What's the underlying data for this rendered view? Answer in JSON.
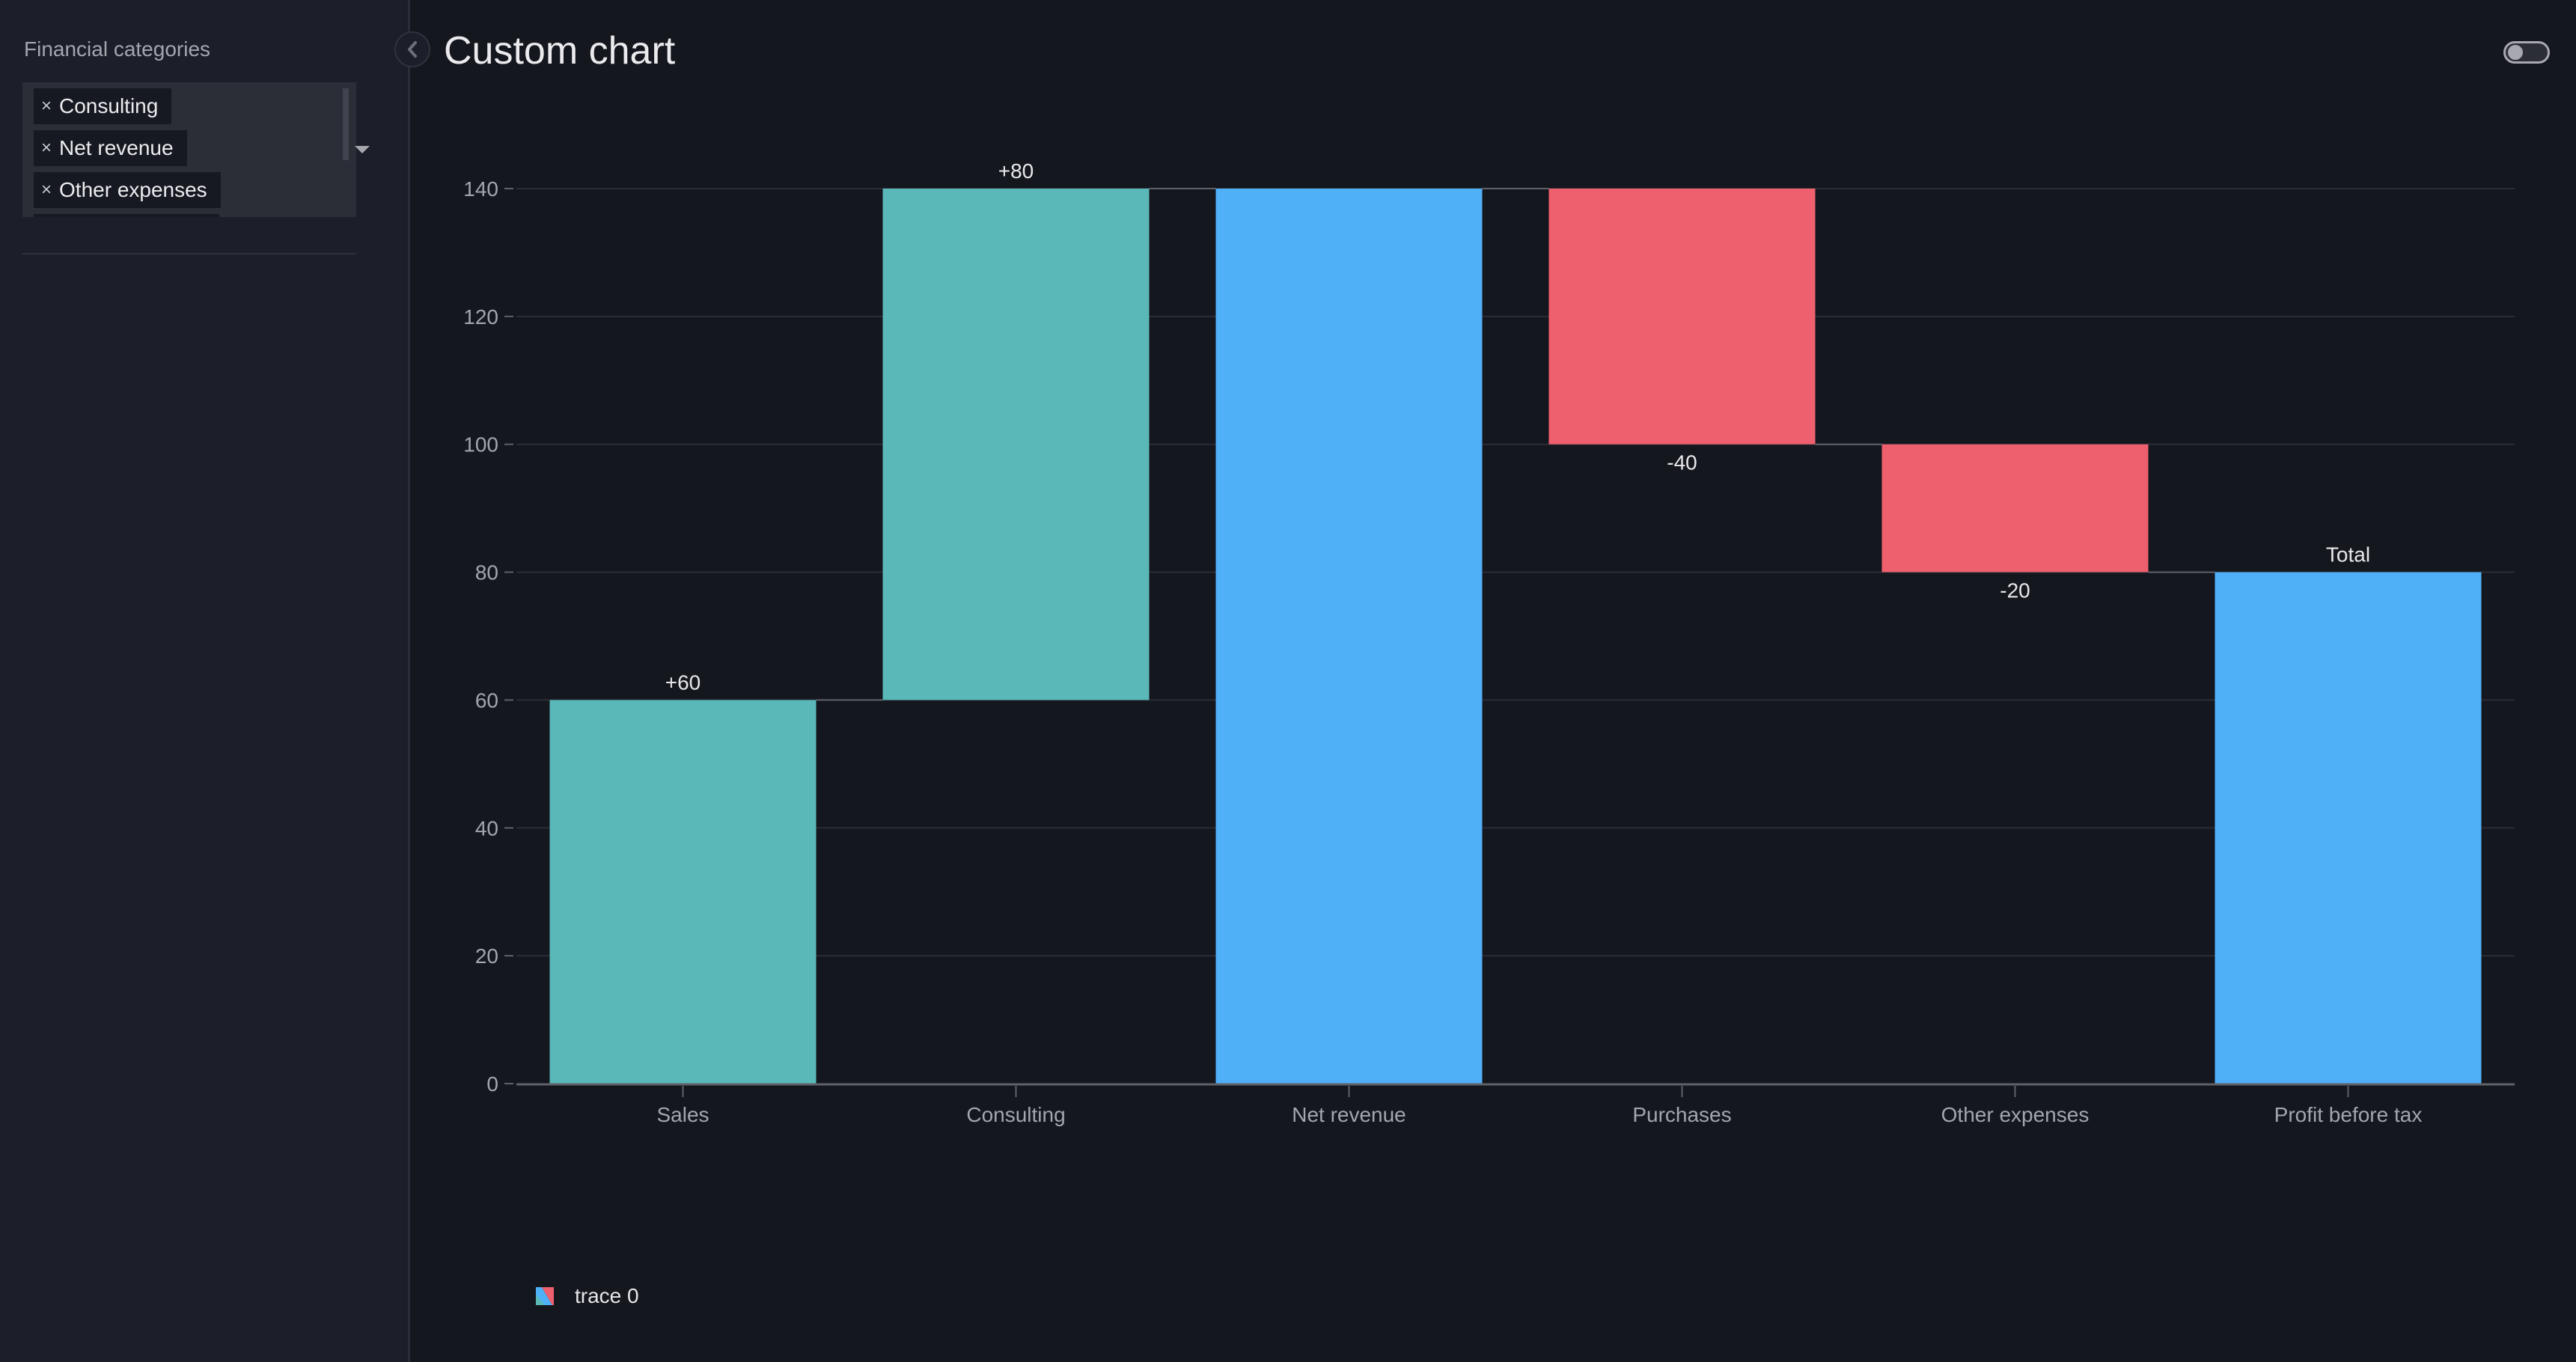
{
  "sidebar": {
    "label": "Financial categories",
    "selected": [
      {
        "label": "Consulting"
      },
      {
        "label": "Net revenue"
      },
      {
        "label": "Other expenses"
      }
    ],
    "remove_glyph": "×"
  },
  "header": {
    "title": "Custom chart",
    "collapse_icon": "chevron-left-icon",
    "toggle_state": "off"
  },
  "colors": {
    "increasing": "#5ab9b8",
    "decreasing": "#ee606d",
    "total": "#4fb0f8",
    "background": "#15171f",
    "sidebar": "#1c1e29",
    "grid": "#2a2d37",
    "connector": "#5f6169"
  },
  "chart_data": {
    "type": "waterfall",
    "title": "Custom chart",
    "xlabel": "",
    "ylabel": "",
    "categories": [
      "Sales",
      "Consulting",
      "Net revenue",
      "Purchases",
      "Other expenses",
      "Profit before tax"
    ],
    "measure": [
      "relative",
      "relative",
      "total",
      "relative",
      "relative",
      "total"
    ],
    "values": [
      60,
      80,
      140,
      -40,
      -20,
      80
    ],
    "text": [
      "+60",
      "+80",
      "",
      "-40",
      "-20",
      "Total"
    ],
    "ylim": [
      0,
      140
    ],
    "yticks": [
      0,
      20,
      40,
      60,
      80,
      100,
      120,
      140
    ],
    "grid": true,
    "legend": {
      "entries": [
        "trace 0"
      ],
      "position": "bottom-left"
    }
  }
}
